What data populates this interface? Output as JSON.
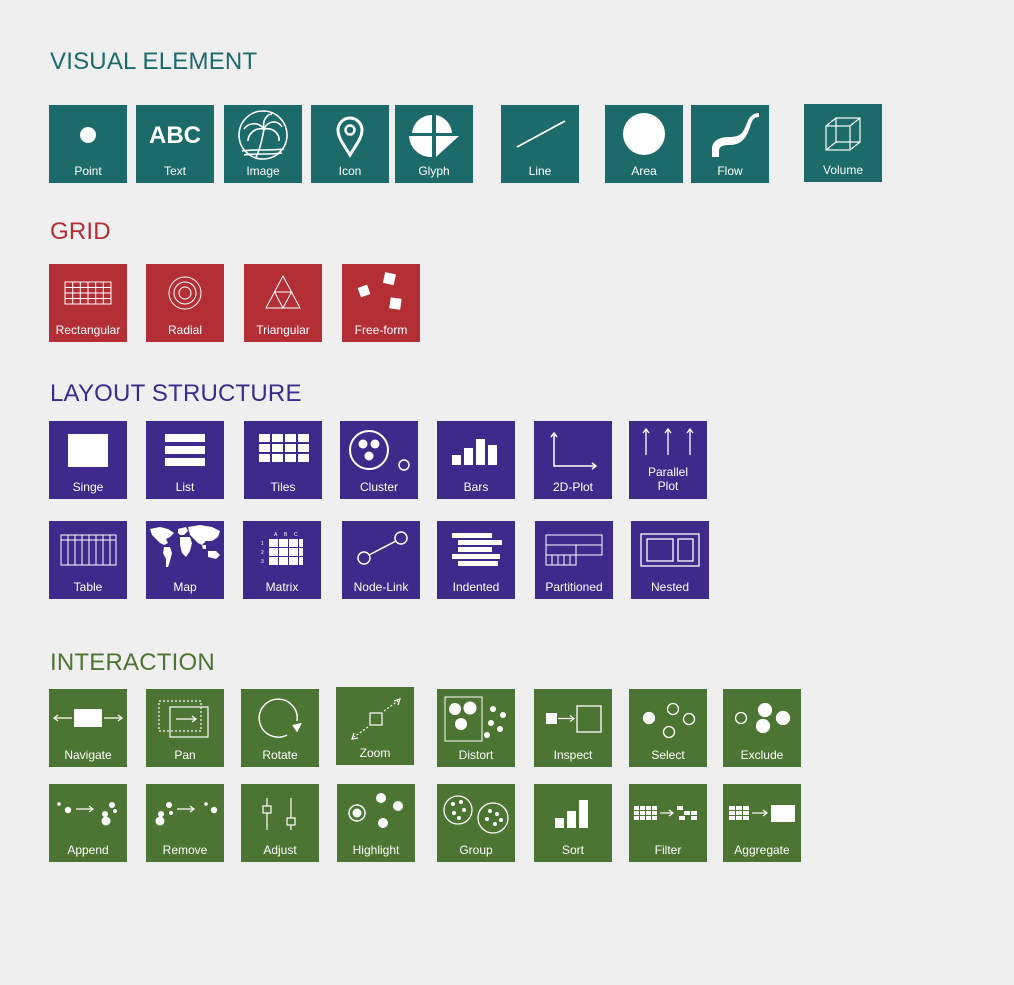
{
  "colors": {
    "visual_element": "#1c6a6a",
    "grid": "#b32e35",
    "layout_structure": "#3d2a8b",
    "interaction": "#4c7432",
    "background": "#efefef"
  },
  "sections": {
    "visual_element": {
      "title": "VISUAL ELEMENT",
      "tiles": [
        {
          "label": "Point",
          "icon": "point-icon"
        },
        {
          "label": "Text",
          "icon": "text-abc-icon",
          "glyph": "ABC"
        },
        {
          "label": "Image",
          "icon": "image-palm-icon"
        },
        {
          "label": "Icon",
          "icon": "map-pin-icon"
        },
        {
          "label": "Glyph",
          "icon": "glyph-icon"
        },
        {
          "label": "Line",
          "icon": "line-icon"
        },
        {
          "label": "Area",
          "icon": "area-circle-icon"
        },
        {
          "label": "Flow",
          "icon": "flow-curve-icon"
        },
        {
          "label": "Volume",
          "icon": "cube-icon"
        }
      ]
    },
    "grid": {
      "title": "GRID",
      "tiles": [
        {
          "label": "Rectangular",
          "icon": "rect-grid-icon"
        },
        {
          "label": "Radial",
          "icon": "radial-grid-icon"
        },
        {
          "label": "Triangular",
          "icon": "triangular-grid-icon"
        },
        {
          "label": "Free-form",
          "icon": "freeform-grid-icon"
        }
      ]
    },
    "layout_structure": {
      "title": "LAYOUT STRUCTURE",
      "tiles": [
        {
          "label": "Singe",
          "icon": "single-rect-icon"
        },
        {
          "label": "List",
          "icon": "list-icon"
        },
        {
          "label": "Tiles",
          "icon": "tiles-icon"
        },
        {
          "label": "Cluster",
          "icon": "cluster-icon"
        },
        {
          "label": "Bars",
          "icon": "bars-icon"
        },
        {
          "label": "2D-Plot",
          "icon": "plot-2d-icon"
        },
        {
          "label": "Parallel Plot",
          "icon": "parallel-plot-icon"
        },
        {
          "label": "Table",
          "icon": "table-icon"
        },
        {
          "label": "Map",
          "icon": "world-map-icon"
        },
        {
          "label": "Matrix",
          "icon": "matrix-icon",
          "col_headers": [
            "A",
            "B",
            "C"
          ],
          "row_headers": [
            "1",
            "2",
            "3"
          ]
        },
        {
          "label": "Node-Link",
          "icon": "node-link-icon"
        },
        {
          "label": "Indented",
          "icon": "indented-icon"
        },
        {
          "label": "Partitioned",
          "icon": "partitioned-icon"
        },
        {
          "label": "Nested",
          "icon": "nested-icon"
        }
      ]
    },
    "interaction": {
      "title": "INTERACTION",
      "tiles": [
        {
          "label": "Navigate",
          "icon": "navigate-icon"
        },
        {
          "label": "Pan",
          "icon": "pan-icon"
        },
        {
          "label": "Rotate",
          "icon": "rotate-icon"
        },
        {
          "label": "Zoom",
          "icon": "zoom-icon"
        },
        {
          "label": "Distort",
          "icon": "distort-icon"
        },
        {
          "label": "Inspect",
          "icon": "inspect-icon"
        },
        {
          "label": "Select",
          "icon": "select-icon"
        },
        {
          "label": "Exclude",
          "icon": "exclude-icon"
        },
        {
          "label": "Append",
          "icon": "append-icon"
        },
        {
          "label": "Remove",
          "icon": "remove-icon"
        },
        {
          "label": "Adjust",
          "icon": "adjust-slider-icon"
        },
        {
          "label": "Highlight",
          "icon": "highlight-icon"
        },
        {
          "label": "Group",
          "icon": "group-icon"
        },
        {
          "label": "Sort",
          "icon": "sort-icon"
        },
        {
          "label": "Filter",
          "icon": "filter-icon"
        },
        {
          "label": "Aggregate",
          "icon": "aggregate-icon"
        }
      ]
    }
  }
}
